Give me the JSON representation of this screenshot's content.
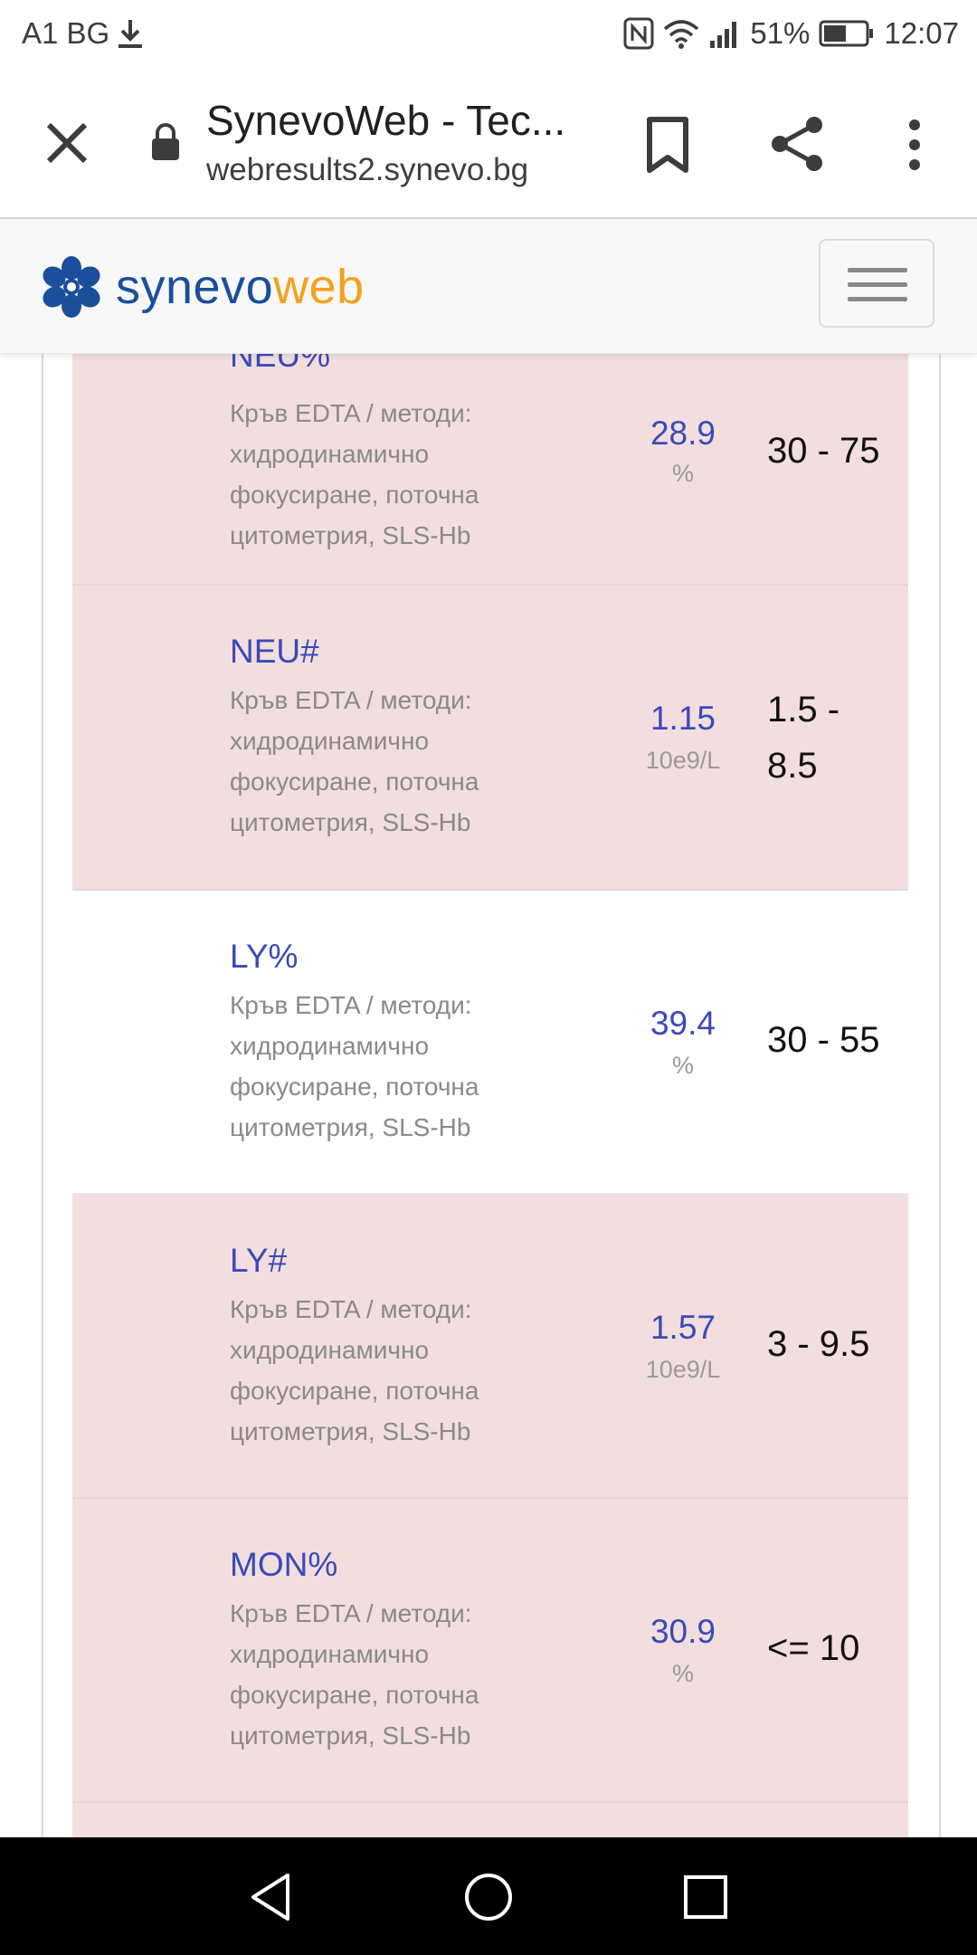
{
  "status_bar": {
    "carrier": "A1 BG",
    "battery_percent": "51%",
    "time": "12:07",
    "icons": [
      "download-icon",
      "nfc-icon",
      "wifi-icon",
      "signal-icon",
      "battery-icon"
    ]
  },
  "browser": {
    "tab_title": "SynevoWeb - Tec...",
    "url": "webresults2.synevo.bg",
    "icons": [
      "close-icon",
      "lock-icon",
      "bookmark-icon",
      "share-icon",
      "more-vert-icon"
    ]
  },
  "site": {
    "logo_part1": "synevo",
    "logo_part2": "web",
    "logo_color1": "#1b4f9c",
    "logo_color2": "#f5a11c"
  },
  "colors": {
    "abnormal_row": "#f2dede",
    "value_text": "#3b4ab8"
  },
  "results": [
    {
      "name": "NEU%",
      "desc_lines": [
        "Кръв EDTA / методи:",
        "хидродинамично",
        "фокусиране, поточна",
        "цитометрия, SLS-Hb"
      ],
      "value": "28.9",
      "unit": "%",
      "range_lines": [
        "30 - 75"
      ],
      "abnormal": true
    },
    {
      "name": "NEU#",
      "desc_lines": [
        "Кръв EDTA / методи:",
        "хидродинамично",
        "фокусиране, поточна",
        "цитометрия, SLS-Hb"
      ],
      "value": "1.15",
      "unit": "10e9/L",
      "range_lines": [
        "1.5 -",
        "8.5"
      ],
      "abnormal": true
    },
    {
      "name": "LY%",
      "desc_lines": [
        "Кръв EDTA / методи:",
        "хидродинамично",
        "фокусиране, поточна",
        "цитометрия, SLS-Hb"
      ],
      "value": "39.4",
      "unit": "%",
      "range_lines": [
        "30 - 55"
      ],
      "abnormal": false
    },
    {
      "name": "LY#",
      "desc_lines": [
        "Кръв EDTA / методи:",
        "хидродинамично",
        "фокусиране, поточна",
        "цитометрия, SLS-Hb"
      ],
      "value": "1.57",
      "unit": "10e9/L",
      "range_lines": [
        "3 - 9.5"
      ],
      "abnormal": true
    },
    {
      "name": "MON%",
      "desc_lines": [
        "Кръв EDTA / методи:",
        "хидродинамично",
        "фокусиране, поточна",
        "цитометрия, SLS-Hb"
      ],
      "value": "30.9",
      "unit": "%",
      "range_lines": [
        "<= 10"
      ],
      "abnormal": true
    }
  ],
  "nav_bar": {
    "icons": [
      "back-icon",
      "home-icon",
      "recents-icon"
    ]
  }
}
